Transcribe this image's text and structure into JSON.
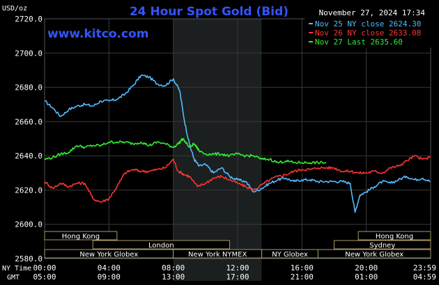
{
  "chart_data": {
    "type": "line",
    "title": "24 Hour Spot Gold (Bid)",
    "timestamp": "November 27, 2024 17:34",
    "watermark": "www.kitco.com",
    "ylabel": "USD/oz",
    "ylim": [
      2580,
      2720
    ],
    "yticks": [
      "2720.0",
      "2700.0",
      "2680.0",
      "2660.0",
      "2640.0",
      "2620.0",
      "2600.0",
      "2580.0"
    ],
    "x_hours": [
      0,
      24
    ],
    "xticks_ny": [
      "00:00",
      "04:00",
      "08:00",
      "12:00",
      "16:00",
      "20:00",
      "23:59"
    ],
    "xticks_gmt": [
      "05:00",
      "09:00",
      "13:00",
      "17:00",
      "21:00",
      "01:00",
      "04:59"
    ],
    "xlabel_ny": "NY Time",
    "xlabel_gmt": "GMT",
    "grid": true,
    "legend_position": "top-right",
    "series": [
      {
        "name": "Nov 25 NY close 2624.30",
        "color": "#55BBFF",
        "x": [
          0,
          0.5,
          1.0,
          1.5,
          2.0,
          2.5,
          3.0,
          3.5,
          4.0,
          4.5,
          5.0,
          5.5,
          6.0,
          6.5,
          7.0,
          7.5,
          8.0,
          8.4,
          8.7,
          9.0,
          9.3,
          9.6,
          10.0,
          10.5,
          11.0,
          11.5,
          12.0,
          12.5,
          13.0,
          13.5,
          14.0,
          14.5,
          15.0,
          15.5,
          16.0,
          16.5,
          17.0,
          17.5,
          18.0,
          18.5,
          19.0,
          19.3,
          19.6,
          20.0,
          20.5,
          21.0,
          21.5,
          22.0,
          22.5,
          23.0,
          23.5,
          23.98
        ],
        "y": [
          2672,
          2668,
          2663,
          2667,
          2669,
          2670,
          2669,
          2672,
          2672,
          2673,
          2676,
          2681,
          2687,
          2686,
          2682,
          2681,
          2685,
          2678,
          2660,
          2647,
          2638,
          2634,
          2635,
          2630,
          2633,
          2628,
          2626,
          2625,
          2619,
          2621,
          2624,
          2626,
          2627,
          2625,
          2626,
          2626,
          2625,
          2625,
          2625,
          2625,
          2624,
          2607,
          2617,
          2619,
          2622,
          2625,
          2624,
          2626,
          2628,
          2626,
          2627,
          2625
        ]
      },
      {
        "name": "Nov 26 NY close 2633.08",
        "color": "#FF3333",
        "x": [
          0,
          0.5,
          1.0,
          1.5,
          2.0,
          2.5,
          3.0,
          3.5,
          4.0,
          4.5,
          5.0,
          5.5,
          6.0,
          6.5,
          7.0,
          7.5,
          8.0,
          8.3,
          8.7,
          9.0,
          9.5,
          10.0,
          10.5,
          11.0,
          11.5,
          12.0,
          12.5,
          13.0,
          13.5,
          14.0,
          14.5,
          15.0,
          15.5,
          16.0,
          16.5,
          17.0,
          17.5,
          18.0,
          18.5,
          19.0,
          19.5,
          20.0,
          20.5,
          21.0,
          21.5,
          22.0,
          22.5,
          23.0,
          23.5,
          23.98
        ],
        "y": [
          2625,
          2621,
          2624,
          2622,
          2624,
          2624,
          2615,
          2613,
          2615,
          2622,
          2630,
          2632,
          2631,
          2631,
          2632,
          2633,
          2638,
          2631,
          2629,
          2628,
          2622,
          2624,
          2627,
          2628,
          2626,
          2624,
          2622,
          2620,
          2623,
          2626,
          2628,
          2629,
          2631,
          2632,
          2632,
          2633,
          2633,
          2633,
          2631,
          2631,
          2630,
          2630,
          2631,
          2630,
          2633,
          2634,
          2637,
          2640,
          2638,
          2639
        ]
      },
      {
        "name": "Nov 27 Last 2635.60",
        "color": "#33EE33",
        "x": [
          0,
          0.5,
          1.0,
          1.5,
          2.0,
          2.5,
          3.0,
          3.5,
          4.0,
          4.5,
          5.0,
          5.5,
          6.0,
          6.5,
          7.0,
          7.5,
          8.0,
          8.3,
          8.6,
          9.0,
          9.3,
          9.6,
          10.0,
          10.5,
          11.0,
          11.5,
          12.0,
          12.5,
          13.0,
          13.5,
          14.0,
          14.5,
          15.0,
          15.5,
          16.0,
          16.5,
          17.0,
          17.5
        ],
        "y": [
          2638,
          2639,
          2641,
          2642,
          2646,
          2645,
          2646,
          2646,
          2648,
          2648,
          2648,
          2647,
          2648,
          2646,
          2648,
          2647,
          2645,
          2647,
          2650,
          2645,
          2647,
          2643,
          2641,
          2641,
          2641,
          2640,
          2641,
          2640,
          2640,
          2638,
          2638,
          2636,
          2637,
          2636,
          2636,
          2636,
          2636,
          2636
        ]
      }
    ],
    "sessions_row1": [
      {
        "label": "Hong Kong",
        "start": 0,
        "end": 4.5
      },
      {
        "label": "Hong Kong",
        "start": 19.5,
        "end": 24
      }
    ],
    "sessions_row2": [
      {
        "label": "London",
        "start": 3.0,
        "end": 11.5
      },
      {
        "label": "Sydney",
        "start": 18.0,
        "end": 24
      }
    ],
    "sessions_row3": [
      {
        "label": "New York Globex",
        "start": 0,
        "end": 8.0
      },
      {
        "label": "New York NYMEX",
        "start": 8.0,
        "end": 13.5
      },
      {
        "label": "NY Globex",
        "start": 13.5,
        "end": 17.0
      },
      {
        "label": "New York Globex",
        "start": 17.0,
        "end": 24
      }
    ],
    "highlight_hours": [
      8.0,
      13.5
    ]
  },
  "colors": {
    "background": "#000000",
    "grid": "#3a3a3a",
    "title": "#3355FF",
    "text": "#FFFFFF",
    "session_fill": "#000000",
    "session_stroke": "#AA9966",
    "highlight": "#1b1f1f"
  }
}
